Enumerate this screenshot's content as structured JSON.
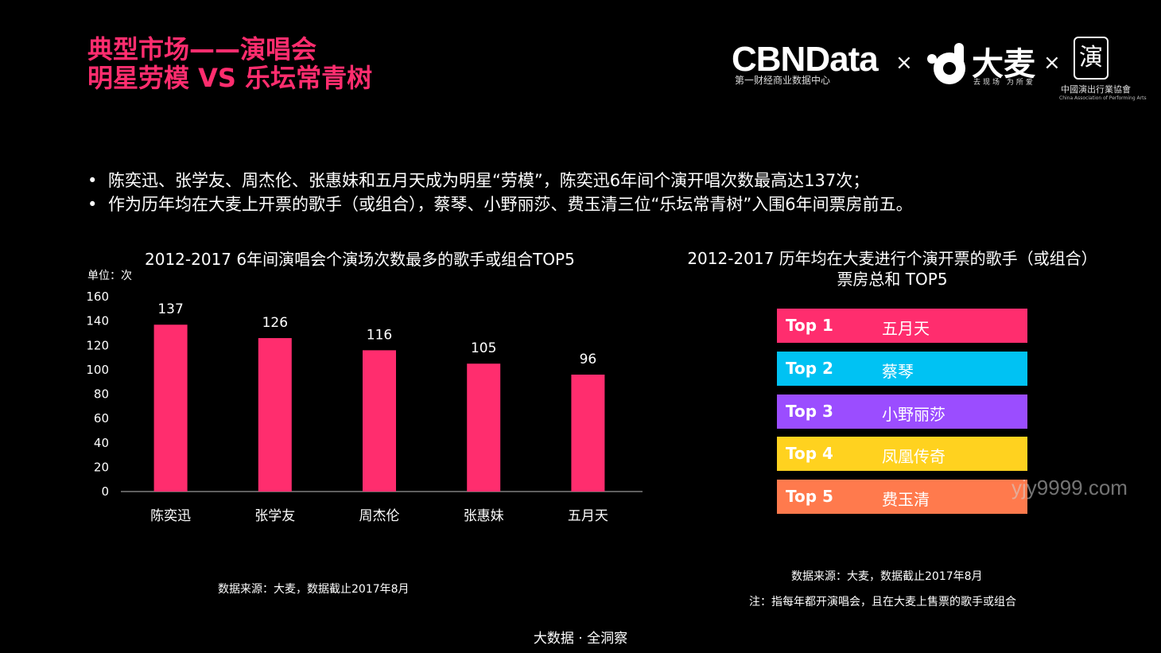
{
  "header": {
    "title_line1": "典型市场——演唱会",
    "title_line2": "明星劳模 VS 乐坛常青树",
    "logo_cbn": "CBNData",
    "logo_cbn_sub": "第一财经商业数据中心",
    "times": "×",
    "logo_damai": "大麦",
    "logo_damai_sub": "去现场 为所爱",
    "logo_seal": "演",
    "logo_assoc": "中國演出行業協會",
    "logo_assoc_en": "China Association of Performing Arts"
  },
  "bullets": [
    "陈奕迅、张学友、周杰伦、张惠妹和五月天成为明星“劳模”，陈奕迅6年间个演开唱次数最高达137次；",
    "作为历年均在大麦上开票的歌手（或组合），蔡琴、小野丽莎、费玉清三位“乐坛常青树”入围6年间票房前五。"
  ],
  "bullet_symbol": "•",
  "left_chart": {
    "title": "2012-2017 6年间演唱会个演场次数最多的歌手或组合TOP5",
    "unit": "单位：次",
    "source": "数据来源：大麦，数据截止2017年8月"
  },
  "chart_data": {
    "type": "bar",
    "categories": [
      "陈奕迅",
      "张学友",
      "周杰伦",
      "张惠妹",
      "五月天"
    ],
    "values": [
      137,
      126,
      116,
      105,
      96
    ],
    "title": "2012-2017 6年间演唱会个演场次数最多的歌手或组合TOP5",
    "ylabel": "单位：次",
    "ylim": [
      0,
      160
    ],
    "yticks": [
      0,
      20,
      40,
      60,
      80,
      100,
      120,
      140,
      160
    ],
    "grid": false,
    "bar_color": "#ff2d6e"
  },
  "right_panel": {
    "title_line1": "2012-2017 历年均在大麦进行个演开票的歌手（或组合）",
    "title_line2": "票房总和 TOP5",
    "ranks": [
      {
        "label": "Top 1",
        "name": "五月天",
        "color": "#ff2d6e"
      },
      {
        "label": "Top 2",
        "name": "蔡琴",
        "color": "#00c2f3"
      },
      {
        "label": "Top 3",
        "name": "小野丽莎",
        "color": "#9b4dff"
      },
      {
        "label": "Top 4",
        "name": "凤凰传奇",
        "color": "#ffd21f"
      },
      {
        "label": "Top 5",
        "name": "费玉清",
        "color": "#ff7a4d"
      }
    ],
    "source": "数据来源：大麦，数据截止2017年8月",
    "note": "注：指每年都开演唱会，且在大麦上售票的歌手或组合"
  },
  "watermark": "yjy9999.com",
  "footer": "大数据 · 全洞察"
}
